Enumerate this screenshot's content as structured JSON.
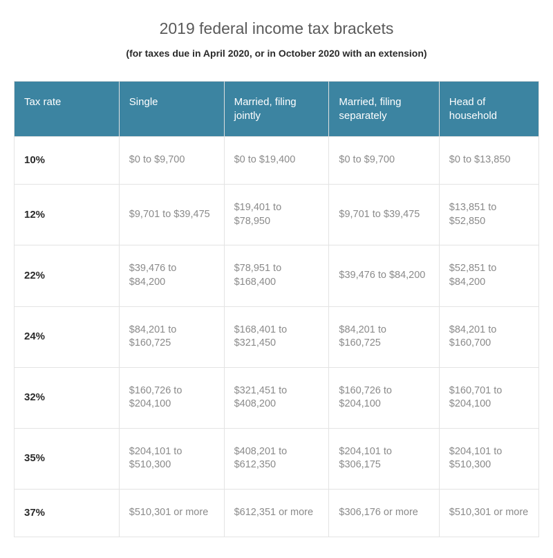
{
  "header": {
    "title": "2019 federal income tax brackets",
    "subtitle": "(for taxes due in April 2020, or in October 2020 with an extension)"
  },
  "table": {
    "type": "table",
    "header_bg_color": "#3c84a1",
    "header_text_color": "#ffffff",
    "cell_text_color": "#8a8a8a",
    "rate_text_color": "#2a2a2a",
    "border_color": "#e3e3e3",
    "columns": [
      {
        "label": "Tax rate"
      },
      {
        "label": "Single"
      },
      {
        "label": "Married, filing jointly"
      },
      {
        "label": "Married, filing separately"
      },
      {
        "label": "Head of household"
      }
    ],
    "rows": [
      {
        "rate": "10%",
        "single": "$0 to $9,700",
        "joint": "$0 to $19,400",
        "separate": "$0 to $9,700",
        "head": "$0 to $13,850"
      },
      {
        "rate": "12%",
        "single": "$9,701 to $39,475",
        "joint": "$19,401 to $78,950",
        "separate": "$9,701 to $39,475",
        "head": "$13,851 to $52,850"
      },
      {
        "rate": "22%",
        "single": "$39,476 to $84,200",
        "joint": "$78,951 to $168,400",
        "separate": "$39,476 to $84,200",
        "head": "$52,851 to $84,200"
      },
      {
        "rate": "24%",
        "single": "$84,201 to $160,725",
        "joint": "$168,401 to $321,450",
        "separate": "$84,201 to $160,725",
        "head": "$84,201 to $160,700"
      },
      {
        "rate": "32%",
        "single": "$160,726 to $204,100",
        "joint": "$321,451 to $408,200",
        "separate": "$160,726 to $204,100",
        "head": "$160,701 to $204,100"
      },
      {
        "rate": "35%",
        "single": "$204,101 to $510,300",
        "joint": "$408,201 to $612,350",
        "separate": "$204,101 to $306,175",
        "head": "$204,101 to $510,300"
      },
      {
        "rate": "37%",
        "single": "$510,301 or more",
        "joint": "$612,351 or more",
        "separate": "$306,176 or more",
        "head": "$510,301 or more"
      }
    ]
  }
}
